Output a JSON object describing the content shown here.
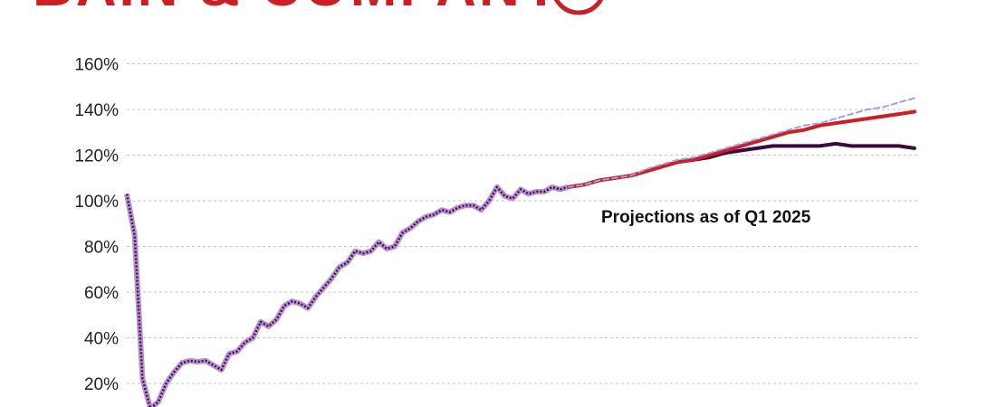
{
  "logo": {
    "text": "BAIN & COMPANY",
    "color": "#cc1f24"
  },
  "chart_data": {
    "type": "line",
    "x_range": [
      0,
      100
    ],
    "ylim": [
      10,
      165
    ],
    "y_ticks": [
      20,
      40,
      60,
      80,
      100,
      120,
      140,
      160
    ],
    "y_tick_labels": [
      "20%",
      "40%",
      "60%",
      "80%",
      "100%",
      "120%",
      "140%",
      "160%"
    ],
    "grid": true,
    "annotation": "Projections as of Q1 2025",
    "history": {
      "color": "#b98fd6",
      "dash_color": "#3a1540",
      "x": [
        0,
        1,
        2,
        3,
        4,
        5,
        6,
        7,
        8,
        9,
        10,
        11,
        12,
        13,
        14,
        15,
        16,
        17,
        18,
        19,
        20,
        21,
        22,
        23,
        24,
        25,
        26,
        27,
        28,
        29,
        30,
        31,
        32,
        33,
        34,
        35,
        36,
        37,
        38,
        39,
        40,
        41,
        42,
        43,
        44,
        45,
        46,
        47,
        48,
        49,
        50,
        51,
        52,
        53,
        54,
        55,
        56
      ],
      "values": [
        103,
        85,
        22,
        9,
        12,
        20,
        25,
        29,
        30,
        29.5,
        30,
        28,
        26,
        33,
        34,
        38,
        40,
        47,
        45,
        48,
        54,
        56,
        55,
        53,
        58,
        62,
        66,
        71,
        73,
        78,
        77,
        78,
        82,
        79,
        80,
        86,
        88,
        91,
        93,
        94,
        96,
        95,
        97,
        98,
        98,
        96,
        100,
        106,
        102,
        101,
        105,
        103,
        104,
        104,
        106,
        105,
        106
      ]
    },
    "series": [
      {
        "color": "#3b0a3f",
        "x": [
          56,
          58,
          60,
          62,
          64,
          66,
          68,
          70,
          72,
          74,
          76,
          78,
          80,
          82,
          84,
          86,
          88,
          90,
          92,
          94,
          96,
          98,
          100
        ],
        "values": [
          106,
          107,
          109,
          110,
          111,
          113,
          115,
          117,
          118,
          119,
          121,
          122,
          123,
          124,
          124,
          124,
          124,
          125,
          124,
          124,
          124,
          124,
          123
        ]
      },
      {
        "color": "#cc1f24",
        "x": [
          56,
          58,
          60,
          62,
          64,
          66,
          68,
          70,
          72,
          74,
          76,
          78,
          80,
          82,
          84,
          86,
          88,
          90,
          92,
          94,
          96,
          98,
          100
        ],
        "values": [
          106,
          107,
          109,
          110,
          111,
          113,
          115,
          117,
          118,
          120,
          122,
          124,
          126,
          128,
          130,
          131,
          133,
          134,
          135,
          136,
          137,
          138,
          139
        ]
      },
      {
        "color": "#a99be6",
        "dashed": true,
        "x": [
          56,
          58,
          60,
          62,
          64,
          66,
          68,
          70,
          72,
          74,
          76,
          78,
          80,
          82,
          84,
          86,
          88,
          90,
          92,
          94,
          96,
          98,
          100
        ],
        "values": [
          106,
          107,
          109,
          110,
          111,
          114,
          116,
          118,
          119,
          121,
          123,
          125,
          127,
          129,
          131,
          133,
          134,
          136,
          138,
          140,
          141,
          143,
          145
        ]
      }
    ]
  }
}
